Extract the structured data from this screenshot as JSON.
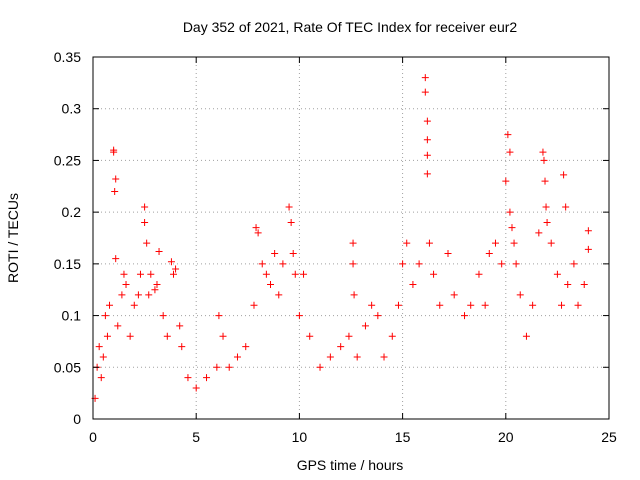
{
  "chart_data": {
    "type": "scatter",
    "title": "Day 352 of 2021, Rate Of TEC Index for receiver eur2",
    "xlabel": "GPS time / hours",
    "ylabel": "ROTI / TECUs",
    "xlim": [
      0,
      25
    ],
    "ylim": [
      0,
      0.35
    ],
    "x_ticks": [
      0,
      5,
      10,
      15,
      20,
      25
    ],
    "x_tick_labels": [
      "0",
      "5",
      "10",
      "15",
      "20",
      "25"
    ],
    "y_ticks": [
      0,
      0.05,
      0.1,
      0.15,
      0.2,
      0.25,
      0.3,
      0.35
    ],
    "y_tick_labels": [
      "0",
      "0.05",
      "0.1",
      "0.15",
      "0.2",
      "0.25",
      "0.3",
      "0.35"
    ],
    "grid": true,
    "marker": "+",
    "color": "#ff0000",
    "series": [
      {
        "points": [
          [
            0.1,
            0.02
          ],
          [
            0.2,
            0.05
          ],
          [
            0.3,
            0.07
          ],
          [
            0.4,
            0.04
          ],
          [
            0.5,
            0.06
          ],
          [
            0.6,
            0.1
          ],
          [
            0.7,
            0.08
          ],
          [
            0.8,
            0.11
          ],
          [
            1.0,
            0.26
          ],
          [
            1.0,
            0.258
          ],
          [
            1.05,
            0.22
          ],
          [
            1.1,
            0.232
          ],
          [
            1.1,
            0.155
          ],
          [
            1.2,
            0.09
          ],
          [
            1.4,
            0.12
          ],
          [
            1.5,
            0.14
          ],
          [
            1.6,
            0.13
          ],
          [
            1.8,
            0.08
          ],
          [
            2.0,
            0.11
          ],
          [
            2.2,
            0.12
          ],
          [
            2.3,
            0.14
          ],
          [
            2.5,
            0.205
          ],
          [
            2.5,
            0.19
          ],
          [
            2.6,
            0.17
          ],
          [
            2.7,
            0.12
          ],
          [
            2.8,
            0.14
          ],
          [
            3.0,
            0.125
          ],
          [
            3.1,
            0.13
          ],
          [
            3.2,
            0.162
          ],
          [
            3.4,
            0.1
          ],
          [
            3.6,
            0.08
          ],
          [
            3.8,
            0.152
          ],
          [
            3.9,
            0.14
          ],
          [
            4.0,
            0.145
          ],
          [
            4.2,
            0.09
          ],
          [
            4.3,
            0.07
          ],
          [
            4.6,
            0.04
          ],
          [
            5.0,
            0.03
          ],
          [
            5.5,
            0.04
          ],
          [
            6.0,
            0.05
          ],
          [
            6.1,
            0.1
          ],
          [
            6.3,
            0.08
          ],
          [
            6.6,
            0.05
          ],
          [
            7.0,
            0.06
          ],
          [
            7.4,
            0.07
          ],
          [
            7.8,
            0.11
          ],
          [
            7.9,
            0.185
          ],
          [
            8.0,
            0.18
          ],
          [
            8.2,
            0.15
          ],
          [
            8.4,
            0.14
          ],
          [
            8.6,
            0.13
          ],
          [
            8.8,
            0.16
          ],
          [
            9.0,
            0.12
          ],
          [
            9.2,
            0.15
          ],
          [
            9.5,
            0.205
          ],
          [
            9.6,
            0.19
          ],
          [
            9.7,
            0.16
          ],
          [
            9.8,
            0.14
          ],
          [
            10.0,
            0.1
          ],
          [
            10.2,
            0.14
          ],
          [
            10.5,
            0.08
          ],
          [
            11.0,
            0.05
          ],
          [
            11.5,
            0.06
          ],
          [
            12.0,
            0.07
          ],
          [
            12.4,
            0.08
          ],
          [
            12.6,
            0.17
          ],
          [
            12.6,
            0.15
          ],
          [
            12.65,
            0.12
          ],
          [
            12.8,
            0.06
          ],
          [
            13.2,
            0.09
          ],
          [
            13.5,
            0.11
          ],
          [
            13.8,
            0.1
          ],
          [
            14.1,
            0.06
          ],
          [
            14.5,
            0.08
          ],
          [
            14.8,
            0.11
          ],
          [
            15.0,
            0.15
          ],
          [
            15.2,
            0.17
          ],
          [
            15.5,
            0.13
          ],
          [
            15.8,
            0.15
          ],
          [
            16.1,
            0.33
          ],
          [
            16.1,
            0.316
          ],
          [
            16.2,
            0.288
          ],
          [
            16.2,
            0.27
          ],
          [
            16.2,
            0.255
          ],
          [
            16.2,
            0.237
          ],
          [
            16.3,
            0.17
          ],
          [
            16.5,
            0.14
          ],
          [
            16.8,
            0.11
          ],
          [
            17.2,
            0.16
          ],
          [
            17.5,
            0.12
          ],
          [
            18.0,
            0.1
          ],
          [
            18.3,
            0.11
          ],
          [
            18.7,
            0.14
          ],
          [
            19.0,
            0.11
          ],
          [
            19.2,
            0.16
          ],
          [
            19.5,
            0.17
          ],
          [
            19.8,
            0.15
          ],
          [
            20.0,
            0.23
          ],
          [
            20.1,
            0.275
          ],
          [
            20.2,
            0.258
          ],
          [
            20.2,
            0.2
          ],
          [
            20.3,
            0.185
          ],
          [
            20.4,
            0.17
          ],
          [
            20.5,
            0.15
          ],
          [
            20.7,
            0.12
          ],
          [
            21.0,
            0.08
          ],
          [
            21.3,
            0.11
          ],
          [
            21.6,
            0.18
          ],
          [
            21.8,
            0.258
          ],
          [
            21.85,
            0.25
          ],
          [
            21.9,
            0.23
          ],
          [
            21.95,
            0.205
          ],
          [
            22.0,
            0.19
          ],
          [
            22.2,
            0.17
          ],
          [
            22.5,
            0.14
          ],
          [
            22.7,
            0.11
          ],
          [
            22.8,
            0.236
          ],
          [
            22.9,
            0.205
          ],
          [
            23.0,
            0.13
          ],
          [
            23.3,
            0.15
          ],
          [
            23.5,
            0.11
          ],
          [
            23.8,
            0.13
          ],
          [
            24.0,
            0.182
          ],
          [
            24.0,
            0.164
          ]
        ]
      }
    ]
  }
}
